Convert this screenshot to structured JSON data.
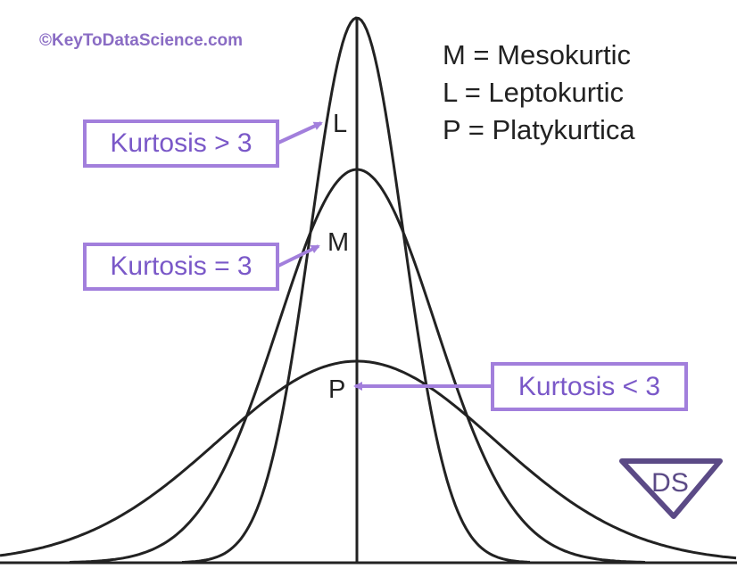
{
  "copyright": "©KeyToDataScience.com",
  "legend": [
    "M = Mesokurtic",
    "L = Leptokurtic",
    "P = Platykurtica"
  ],
  "curves": {
    "leptokurtic": {
      "letter": "L",
      "kurtosis_label": "Kurtosis > 3"
    },
    "mesokurtic": {
      "letter": "M",
      "kurtosis_label": "Kurtosis = 3"
    },
    "platykurtic": {
      "letter": "P",
      "kurtosis_label": "Kurtosis < 3"
    }
  },
  "colors": {
    "curve_stroke": "#222222",
    "label_border": "#a27fdc",
    "label_text": "#7a58c8",
    "copyright_text": "#8a6cc4",
    "logo": "#5b4a86"
  },
  "logo": {
    "text": "DS"
  }
}
